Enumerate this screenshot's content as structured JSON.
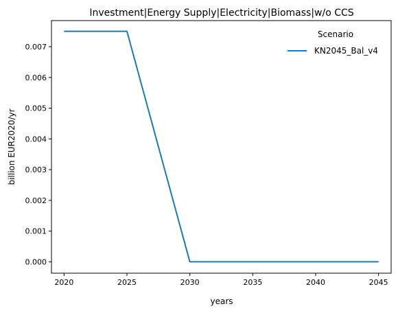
{
  "chart_data": {
    "type": "line",
    "title": "Investment|Energy Supply|Electricity|Biomass|w/o CCS",
    "xlabel": "years",
    "ylabel": "billion EUR2020/yr",
    "x": [
      2020,
      2025,
      2030,
      2035,
      2040,
      2045
    ],
    "xlim": [
      2019,
      2046
    ],
    "ylim": [
      -0.00037,
      0.00785
    ],
    "xticks": [
      2020,
      2025,
      2030,
      2035,
      2040,
      2045
    ],
    "yticks": [
      0.0,
      0.001,
      0.002,
      0.003,
      0.004,
      0.005,
      0.006,
      0.007
    ],
    "ytick_labels": [
      "0.000",
      "0.001",
      "0.002",
      "0.003",
      "0.004",
      "0.005",
      "0.006",
      "0.007"
    ],
    "grid": false,
    "legend": {
      "title": "Scenario",
      "placement": "top-right"
    },
    "series": [
      {
        "name": "KN2045_Bal_v4",
        "color": "#1f77b4",
        "values": [
          0.0075,
          0.0075,
          0.0,
          0.0,
          0.0,
          0.0
        ]
      }
    ]
  }
}
